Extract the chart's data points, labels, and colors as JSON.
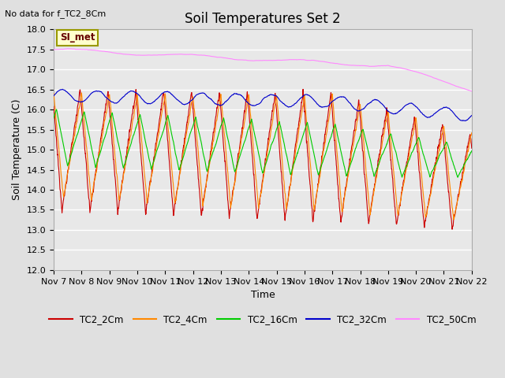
{
  "title": "Soil Temperatures Set 2",
  "no_data_label": "No data for f_TC2_8Cm",
  "xlabel": "Time",
  "ylabel": "Soil Temperature (C)",
  "ylim": [
    12.0,
    18.0
  ],
  "yticks": [
    12.0,
    12.5,
    13.0,
    13.5,
    14.0,
    14.5,
    15.0,
    15.5,
    16.0,
    16.5,
    17.0,
    17.5,
    18.0
  ],
  "xtick_labels": [
    "Nov 7",
    "Nov 8",
    "Nov 9",
    "Nov 10",
    "Nov 11",
    "Nov 12",
    "Nov 13",
    "Nov 14",
    "Nov 15",
    "Nov 16",
    "Nov 17",
    "Nov 18",
    "Nov 19",
    "Nov 20",
    "Nov 21",
    "Nov 22"
  ],
  "background_color": "#e0e0e0",
  "plot_background": "#e8e8e8",
  "grid_color": "#ffffff",
  "series": {
    "TC2_2Cm": {
      "color": "#cc0000",
      "linewidth": 0.8
    },
    "TC2_4Cm": {
      "color": "#ff8800",
      "linewidth": 0.8
    },
    "TC2_16Cm": {
      "color": "#00cc00",
      "linewidth": 0.8
    },
    "TC2_32Cm": {
      "color": "#0000cc",
      "linewidth": 0.8
    },
    "TC2_50Cm": {
      "color": "#ff88ff",
      "linewidth": 0.8
    }
  },
  "legend_box_color": "#ffffcc",
  "legend_box_edge": "#999900",
  "si_met_label": "SI_met",
  "title_fontsize": 12,
  "axis_label_fontsize": 9,
  "tick_fontsize": 8
}
